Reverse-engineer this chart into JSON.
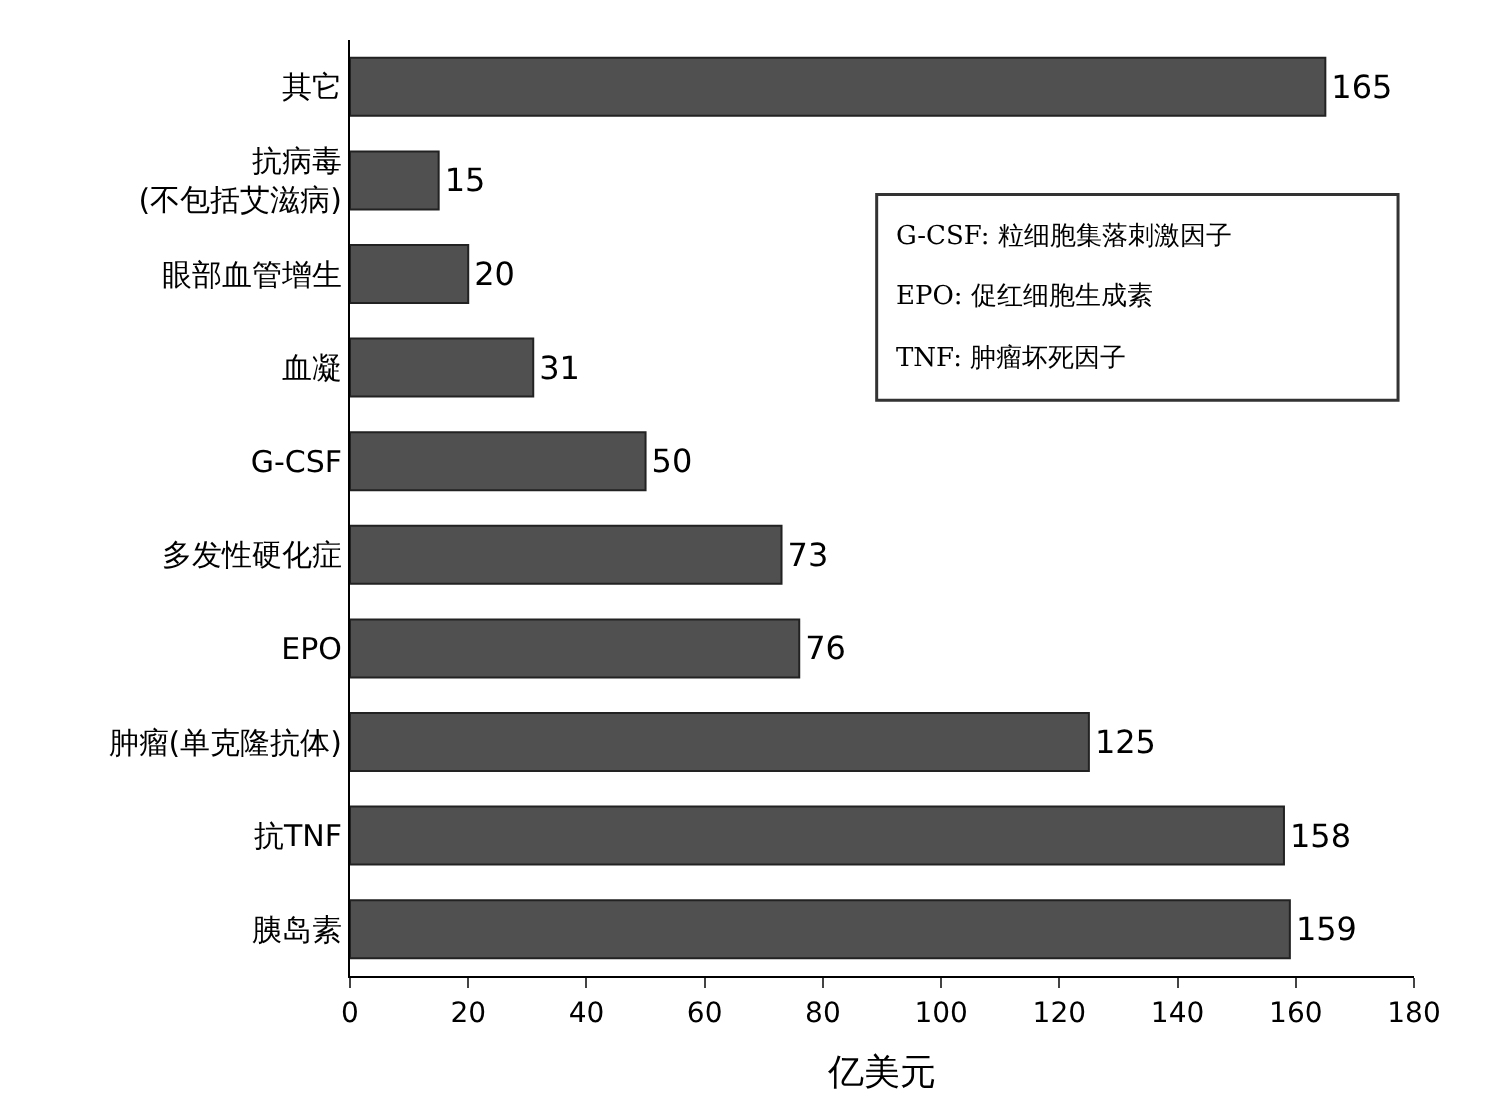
{
  "chart_data": {
    "type": "bar",
    "orientation": "horizontal",
    "xlabel": "亿美元",
    "categories": [
      "其它",
      "抗病毒\n(不包括艾滋病)",
      "眼部血管增生",
      "血凝",
      "G-CSF",
      "多发性硬化症",
      "EPO",
      "肿瘤(单克隆抗体)",
      "抗TNF",
      "胰岛素"
    ],
    "values": [
      165,
      15,
      20,
      31,
      50,
      73,
      76,
      125,
      158,
      159
    ],
    "color": "#505050",
    "data_labels": true,
    "xlim": [
      0,
      180
    ],
    "xticks": [
      0,
      20,
      40,
      60,
      80,
      100,
      120,
      140,
      160,
      180
    ],
    "legend": false,
    "annotations": [
      "G-CSF: 粒细胞集落刺激因子",
      "EPO: 促红细胞生成素",
      "TNF: 肿瘤坏死因子"
    ]
  }
}
